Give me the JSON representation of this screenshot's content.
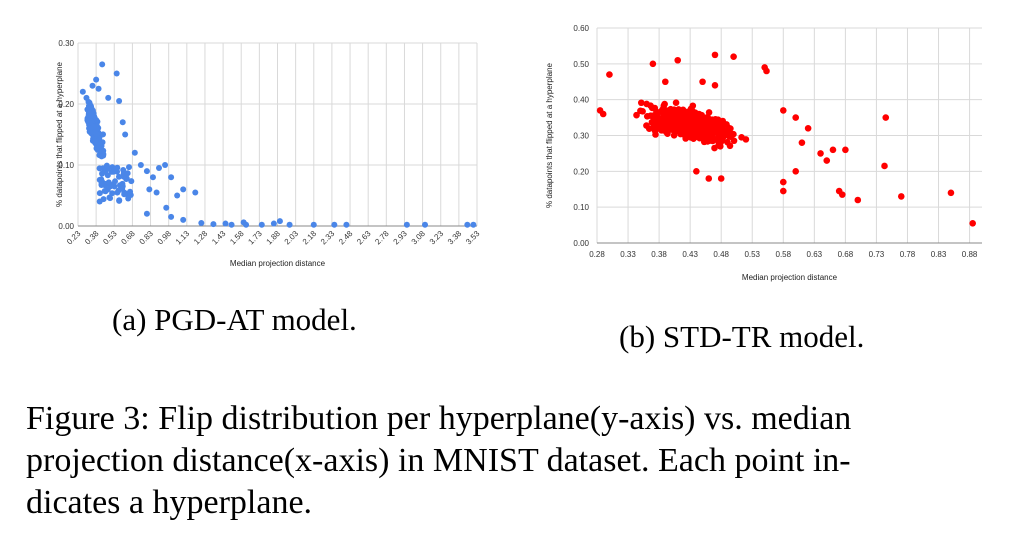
{
  "chart_data": [
    {
      "type": "scatter",
      "title": "",
      "xlabel": "Median projection distance",
      "ylabel": "% datapoints that flipped at a hyperplane",
      "xlim": [
        0.23,
        3.53
      ],
      "ylim": [
        0,
        0.3
      ],
      "xticks": [
        "0.23",
        "0.38",
        "0.53",
        "0.68",
        "0.83",
        "0.98",
        "1.13",
        "1.28",
        "1.43",
        "1.58",
        "1.73",
        "1.88",
        "2.03",
        "2.18",
        "2.33",
        "2.48",
        "2.63",
        "2.78",
        "2.93",
        "3.08",
        "3.23",
        "3.38",
        "3.53"
      ],
      "yticks": [
        "0.00",
        "0.10",
        "0.20",
        "0.30"
      ],
      "color": "#4a86e8",
      "grid": "vertical",
      "outliers": [
        [
          0.27,
          0.22
        ],
        [
          0.3,
          0.21
        ],
        [
          0.35,
          0.23
        ],
        [
          0.38,
          0.24
        ],
        [
          0.43,
          0.265
        ],
        [
          0.4,
          0.225
        ],
        [
          0.48,
          0.21
        ],
        [
          0.55,
          0.25
        ],
        [
          0.57,
          0.205
        ],
        [
          0.6,
          0.17
        ],
        [
          0.62,
          0.15
        ],
        [
          0.7,
          0.12
        ],
        [
          0.75,
          0.1
        ],
        [
          0.8,
          0.09
        ],
        [
          0.85,
          0.08
        ],
        [
          0.82,
          0.06
        ],
        [
          0.88,
          0.055
        ],
        [
          0.9,
          0.095
        ],
        [
          0.95,
          0.1
        ],
        [
          1.0,
          0.08
        ],
        [
          1.05,
          0.05
        ],
        [
          1.1,
          0.06
        ],
        [
          1.2,
          0.055
        ],
        [
          0.96,
          0.03
        ],
        [
          1.0,
          0.015
        ],
        [
          1.1,
          0.01
        ],
        [
          0.8,
          0.02
        ],
        [
          1.25,
          0.005
        ],
        [
          1.35,
          0.003
        ],
        [
          1.45,
          0.004
        ],
        [
          1.5,
          0.002
        ],
        [
          1.6,
          0.006
        ],
        [
          1.62,
          0.002
        ],
        [
          1.75,
          0.002
        ],
        [
          1.85,
          0.004
        ],
        [
          1.9,
          0.008
        ],
        [
          1.98,
          0.002
        ],
        [
          2.18,
          0.002
        ],
        [
          2.35,
          0.002
        ],
        [
          2.45,
          0.002
        ],
        [
          2.95,
          0.002
        ],
        [
          3.1,
          0.002
        ],
        [
          3.45,
          0.002
        ],
        [
          3.5,
          0.002
        ]
      ]
    },
    {
      "type": "scatter",
      "title": "",
      "xlabel": "Median projection distance",
      "ylabel": "% datapoints that flipped at a hyperplane",
      "xlim": [
        0.28,
        0.9
      ],
      "ylim": [
        0,
        0.6
      ],
      "xticks": [
        "0.28",
        "0.33",
        "0.38",
        "0.43",
        "0.48",
        "0.53",
        "0.58",
        "0.63",
        "0.68",
        "0.73",
        "0.78",
        "0.83",
        "0.88"
      ],
      "yticks": [
        "0.00",
        "0.10",
        "0.20",
        "0.30",
        "0.40",
        "0.50",
        "0.60"
      ],
      "color": "#ff0000",
      "grid": "both",
      "outliers": [
        [
          0.3,
          0.47
        ],
        [
          0.37,
          0.5
        ],
        [
          0.41,
          0.51
        ],
        [
          0.47,
          0.525
        ],
        [
          0.5,
          0.52
        ],
        [
          0.55,
          0.49
        ],
        [
          0.553,
          0.48
        ],
        [
          0.45,
          0.45
        ],
        [
          0.47,
          0.44
        ],
        [
          0.39,
          0.45
        ],
        [
          0.58,
          0.37
        ],
        [
          0.6,
          0.35
        ],
        [
          0.62,
          0.32
        ],
        [
          0.61,
          0.28
        ],
        [
          0.64,
          0.25
        ],
        [
          0.66,
          0.26
        ],
        [
          0.65,
          0.23
        ],
        [
          0.68,
          0.26
        ],
        [
          0.6,
          0.2
        ],
        [
          0.58,
          0.17
        ],
        [
          0.58,
          0.145
        ],
        [
          0.67,
          0.145
        ],
        [
          0.675,
          0.135
        ],
        [
          0.7,
          0.12
        ],
        [
          0.745,
          0.35
        ],
        [
          0.743,
          0.215
        ],
        [
          0.77,
          0.13
        ],
        [
          0.85,
          0.14
        ],
        [
          0.885,
          0.055
        ],
        [
          0.46,
          0.18
        ],
        [
          0.48,
          0.18
        ],
        [
          0.44,
          0.2
        ],
        [
          0.29,
          0.36
        ],
        [
          0.285,
          0.37
        ]
      ]
    }
  ],
  "captions": {
    "a": "(a) PGD-AT model.",
    "b": "(b) STD-TR model.",
    "figure_lines": [
      "Figure 3: Flip distribution per hyperplane(y-axis) vs. median",
      "projection distance(x-axis) in MNIST dataset. Each point in-",
      "dicates a hyperplane."
    ]
  }
}
